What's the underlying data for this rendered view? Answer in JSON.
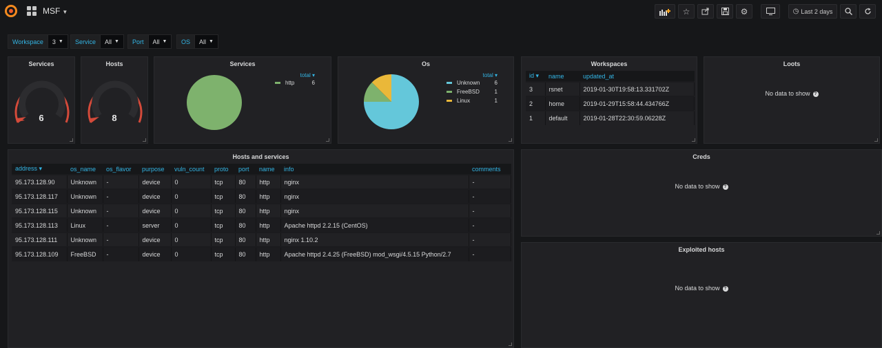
{
  "header": {
    "title": "MSF",
    "time_range": "Last 2 days"
  },
  "variables": [
    {
      "label": "Workspace",
      "value": "3"
    },
    {
      "label": "Service",
      "value": "All"
    },
    {
      "label": "Port",
      "value": "All"
    },
    {
      "label": "OS",
      "value": "All"
    }
  ],
  "gauges": [
    {
      "title": "Services",
      "value": "6",
      "fraction": 0.0
    },
    {
      "title": "Hosts",
      "value": "8",
      "fraction": 0.0
    }
  ],
  "services_pie": {
    "title": "Services",
    "legend_header": "total",
    "items": [
      {
        "name": "http",
        "value": "6",
        "color": "#7eb26d"
      }
    ]
  },
  "os_pie": {
    "title": "Os",
    "legend_header": "total",
    "items": [
      {
        "name": "Unknown",
        "value": "6",
        "color": "#64c7da"
      },
      {
        "name": "FreeBSD",
        "value": "1",
        "color": "#7eb26d"
      },
      {
        "name": "Linux",
        "value": "1",
        "color": "#eab839"
      }
    ]
  },
  "workspaces": {
    "title": "Workspaces",
    "columns": [
      "id",
      "name",
      "updated_at"
    ],
    "rows": [
      [
        "3",
        "rsnet",
        "2019-01-30T19:58:13.331702Z"
      ],
      [
        "2",
        "home",
        "2019-01-29T15:58:44.434766Z"
      ],
      [
        "1",
        "default",
        "2019-01-28T22:30:59.06228Z"
      ]
    ]
  },
  "loots": {
    "title": "Loots",
    "empty": "No data to show"
  },
  "creds": {
    "title": "Creds",
    "empty": "No data to show"
  },
  "exploited": {
    "title": "Exploited hosts",
    "empty": "No data to show"
  },
  "hosts_services": {
    "title": "Hosts and services",
    "columns": [
      "address",
      "os_name",
      "os_flavor",
      "purpose",
      "vuln_count",
      "proto",
      "port",
      "name",
      "info",
      "comments"
    ],
    "rows": [
      [
        "95.173.128.90",
        "Unknown",
        "-",
        "device",
        "0",
        "tcp",
        "80",
        "http",
        "nginx",
        "-"
      ],
      [
        "95.173.128.117",
        "Unknown",
        "-",
        "device",
        "0",
        "tcp",
        "80",
        "http",
        "nginx",
        "-"
      ],
      [
        "95.173.128.115",
        "Unknown",
        "-",
        "device",
        "0",
        "tcp",
        "80",
        "http",
        "nginx",
        "-"
      ],
      [
        "95.173.128.113",
        "Linux",
        "-",
        "server",
        "0",
        "tcp",
        "80",
        "http",
        "Apache httpd 2.2.15 (CentOS)",
        "-"
      ],
      [
        "95.173.128.111",
        "Unknown",
        "-",
        "device",
        "0",
        "tcp",
        "80",
        "http",
        "nginx 1.10.2",
        "-"
      ],
      [
        "95.173.128.109",
        "FreeBSD",
        "-",
        "device",
        "0",
        "tcp",
        "80",
        "http",
        "Apache httpd 2.4.25 (FreeBSD) mod_wsgi/4.5.15 Python/2.7",
        "-"
      ]
    ]
  },
  "colors": {
    "accent": "#33b5e5",
    "gauge_red": "#d44a3a",
    "panel_bg": "#212124"
  }
}
